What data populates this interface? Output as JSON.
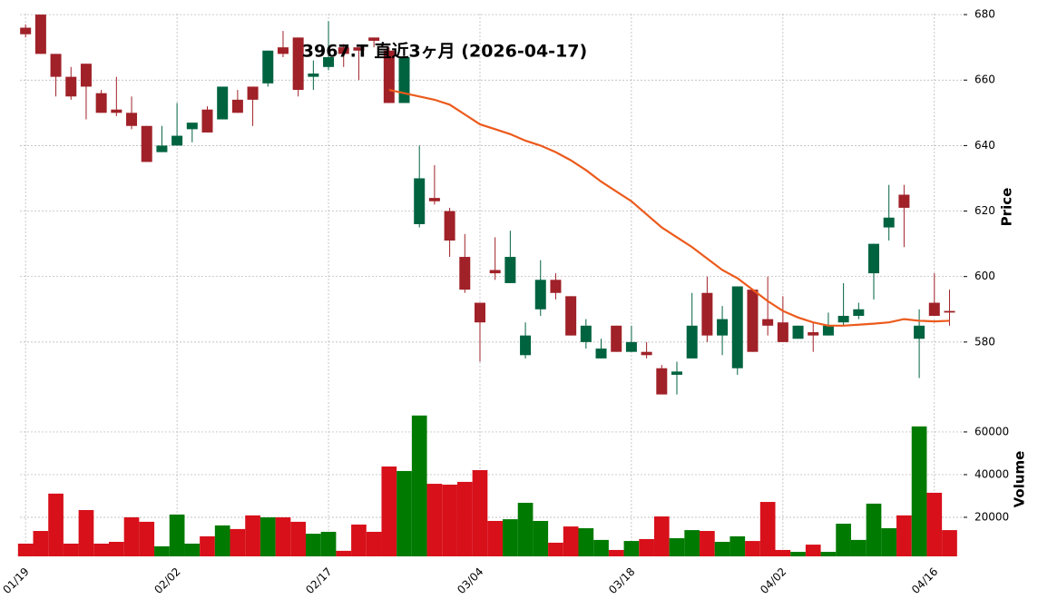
{
  "chart_data": {
    "type": "candlestick",
    "title": "3967.T 直近3ヶ月 (2026-04-17)",
    "categories": [
      "01/19",
      null,
      null,
      null,
      null,
      null,
      null,
      null,
      null,
      null,
      "02/02",
      null,
      null,
      null,
      null,
      null,
      null,
      null,
      null,
      null,
      "02/17",
      null,
      null,
      null,
      null,
      null,
      null,
      null,
      null,
      null,
      "03/04",
      null,
      null,
      null,
      null,
      null,
      null,
      null,
      null,
      null,
      "03/18",
      null,
      null,
      null,
      null,
      null,
      null,
      null,
      null,
      null,
      "04/02",
      null,
      null,
      null,
      null,
      null,
      null,
      null,
      null,
      null,
      "04/16",
      null
    ],
    "open": [
      676,
      680,
      668,
      661,
      665,
      656,
      651,
      650,
      646,
      638,
      640,
      645,
      651,
      648,
      654,
      658,
      659,
      670,
      673,
      661,
      664,
      670,
      670,
      673,
      669,
      653,
      616,
      624,
      620,
      606,
      592,
      602,
      598,
      576,
      590,
      599,
      594,
      580,
      575,
      585,
      577,
      577,
      572,
      570,
      575,
      595,
      582,
      572,
      596,
      587,
      586,
      581,
      583,
      582,
      586,
      588,
      601,
      615,
      625,
      581,
      592,
      589.5
    ],
    "high": [
      677,
      680,
      668,
      664,
      665,
      657,
      661,
      655,
      646,
      646,
      653,
      647,
      652,
      658,
      657,
      658,
      669,
      675,
      673,
      666,
      678,
      671,
      670,
      673,
      670,
      667,
      640,
      634,
      621,
      613,
      592,
      612,
      614,
      586,
      605,
      601,
      594,
      587,
      581,
      585,
      585,
      580,
      573,
      574,
      595,
      600,
      591,
      597,
      596,
      600,
      594,
      585,
      586,
      589,
      598,
      592,
      610,
      628,
      628,
      590,
      601,
      596
    ],
    "low": [
      673,
      668,
      655,
      654,
      648,
      650,
      649,
      645,
      635,
      638,
      640,
      641,
      644,
      648,
      650,
      646,
      658,
      667,
      655,
      657,
      663,
      664,
      660,
      670,
      653,
      653,
      615,
      622,
      606,
      595,
      574,
      599,
      598,
      575,
      588,
      593,
      582,
      578,
      575,
      577,
      577,
      575,
      564,
      564,
      575,
      580,
      576,
      570,
      577,
      582,
      580,
      581,
      577,
      582,
      585,
      587,
      593,
      611,
      609,
      569,
      588,
      585
    ],
    "close": [
      674,
      668,
      661,
      655,
      658,
      650,
      650,
      646,
      635,
      640,
      643,
      647,
      644,
      658,
      650,
      654,
      669,
      668,
      657,
      662,
      667,
      668,
      669,
      672,
      653,
      667,
      630,
      623,
      611,
      596,
      586,
      601,
      606,
      582,
      599,
      595,
      582,
      585,
      578,
      577,
      580,
      576,
      564,
      571,
      585,
      582,
      587,
      597,
      577,
      585,
      580,
      585,
      582,
      585,
      588,
      590,
      610,
      618,
      621,
      585,
      588,
      589
    ],
    "up_color": "#006340",
    "down_color": "#a02128",
    "ma_values": [
      null,
      null,
      null,
      null,
      null,
      null,
      null,
      null,
      null,
      null,
      null,
      null,
      null,
      null,
      null,
      null,
      null,
      null,
      null,
      null,
      null,
      null,
      null,
      null,
      657,
      656,
      655,
      654,
      652.5,
      649.5,
      646.5,
      645,
      643.5,
      641.5,
      640,
      638,
      635.5,
      632.5,
      629,
      626,
      623,
      619,
      615,
      612,
      609,
      605.5,
      602,
      599.5,
      596,
      592.5,
      589.5,
      587.5,
      586,
      585,
      585,
      585.3,
      585.6,
      586,
      587,
      586.5,
      586.3,
      586.5
    ],
    "ma_color": "#ec5a1c",
    "ylabel": "Price",
    "ylim": [
      562.5,
      680.3
    ],
    "yticks": [
      580,
      600,
      620,
      640,
      660,
      680
    ],
    "grid": true,
    "volume": {
      "ylabel": "Volume",
      "values": [
        7660,
        13600,
        31100,
        7660,
        23400,
        7660,
        8500,
        20000,
        17900,
        6400,
        21300,
        7660,
        11100,
        16200,
        14500,
        20900,
        20000,
        20000,
        17900,
        12300,
        13200,
        4300,
        16600,
        13200,
        43800,
        41700,
        67700,
        35700,
        35300,
        36600,
        42100,
        18300,
        19100,
        26800,
        18300,
        8100,
        15700,
        14900,
        9400,
        4700,
        8900,
        9800,
        20400,
        10200,
        14000,
        13600,
        8500,
        11100,
        8900,
        27200,
        4700,
        3800,
        7200,
        3800,
        17000,
        9400,
        26400,
        14900,
        20900,
        62600,
        31500,
        14000
      ],
      "up_color": "#007a00",
      "down_color": "#d7101a",
      "ylim": [
        1700,
        74000
      ],
      "yticks": [
        20000,
        40000,
        60000
      ]
    }
  }
}
